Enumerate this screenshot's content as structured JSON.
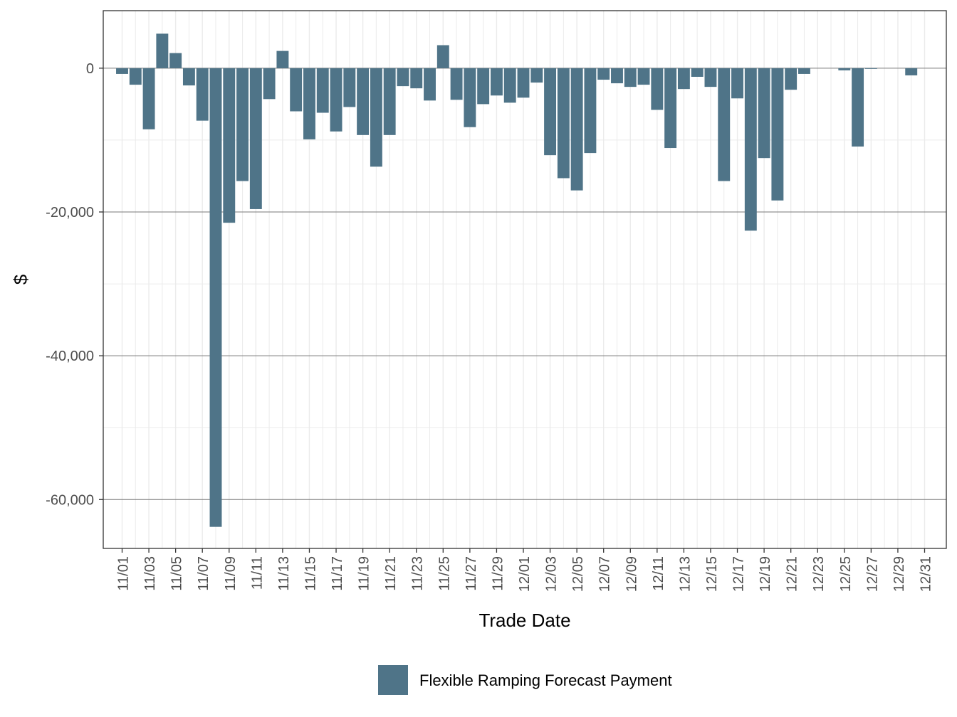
{
  "chart_data": {
    "type": "bar",
    "xlabel": "Trade Date",
    "ylabel": "$",
    "ylim": [
      -66800,
      8000
    ],
    "y_ticks": [
      0,
      -20000,
      -40000,
      -60000
    ],
    "y_tick_labels": [
      "0",
      "-20,000",
      "-40,000",
      "-60,000"
    ],
    "grid": true,
    "legend_position": "bottom",
    "series": [
      {
        "name": "Flexible Ramping Forecast Payment",
        "color": "#4f7488",
        "categories": [
          "11/01",
          "11/02",
          "11/03",
          "11/04",
          "11/05",
          "11/06",
          "11/07",
          "11/08",
          "11/09",
          "11/10",
          "11/11",
          "11/12",
          "11/13",
          "11/14",
          "11/15",
          "11/16",
          "11/17",
          "11/18",
          "11/19",
          "11/20",
          "11/21",
          "11/22",
          "11/23",
          "11/24",
          "11/25",
          "11/26",
          "11/27",
          "11/28",
          "11/29",
          "11/30",
          "12/01",
          "12/02",
          "12/03",
          "12/04",
          "12/05",
          "12/06",
          "12/07",
          "12/08",
          "12/09",
          "12/10",
          "12/11",
          "12/12",
          "12/13",
          "12/14",
          "12/15",
          "12/16",
          "12/17",
          "12/18",
          "12/19",
          "12/20",
          "12/21",
          "12/22",
          "12/23",
          "12/24",
          "12/25",
          "12/26",
          "12/27",
          "12/28",
          "12/29",
          "12/30",
          "12/31"
        ],
        "values": [
          -800,
          -2300,
          -8500,
          4800,
          2100,
          -2400,
          -7300,
          -63800,
          -21500,
          -15700,
          -19600,
          -4300,
          2400,
          -6000,
          -9900,
          -6200,
          -8800,
          -5400,
          -9300,
          -13700,
          -9300,
          -2500,
          -2800,
          -4500,
          3200,
          -4400,
          -8200,
          -5000,
          -3800,
          -4800,
          -4100,
          -2000,
          -12100,
          -15300,
          -17000,
          -11800,
          -1600,
          -2100,
          -2600,
          -2300,
          -5800,
          -11100,
          -2900,
          -1200,
          -2600,
          -15700,
          -4200,
          -22600,
          -12500,
          -18400,
          -3000,
          -800,
          0,
          0,
          -300,
          -10900,
          -100,
          0,
          0,
          -1000,
          0
        ]
      }
    ],
    "x_tick_labels": [
      "11/01",
      "11/03",
      "11/05",
      "11/07",
      "11/09",
      "11/11",
      "11/13",
      "11/15",
      "11/17",
      "11/19",
      "11/21",
      "11/23",
      "11/25",
      "11/27",
      "11/29",
      "12/01",
      "12/03",
      "12/05",
      "12/07",
      "12/09",
      "12/11",
      "12/13",
      "12/15",
      "12/17",
      "12/19",
      "12/21",
      "12/23",
      "12/25",
      "12/27",
      "12/29",
      "12/31"
    ]
  }
}
